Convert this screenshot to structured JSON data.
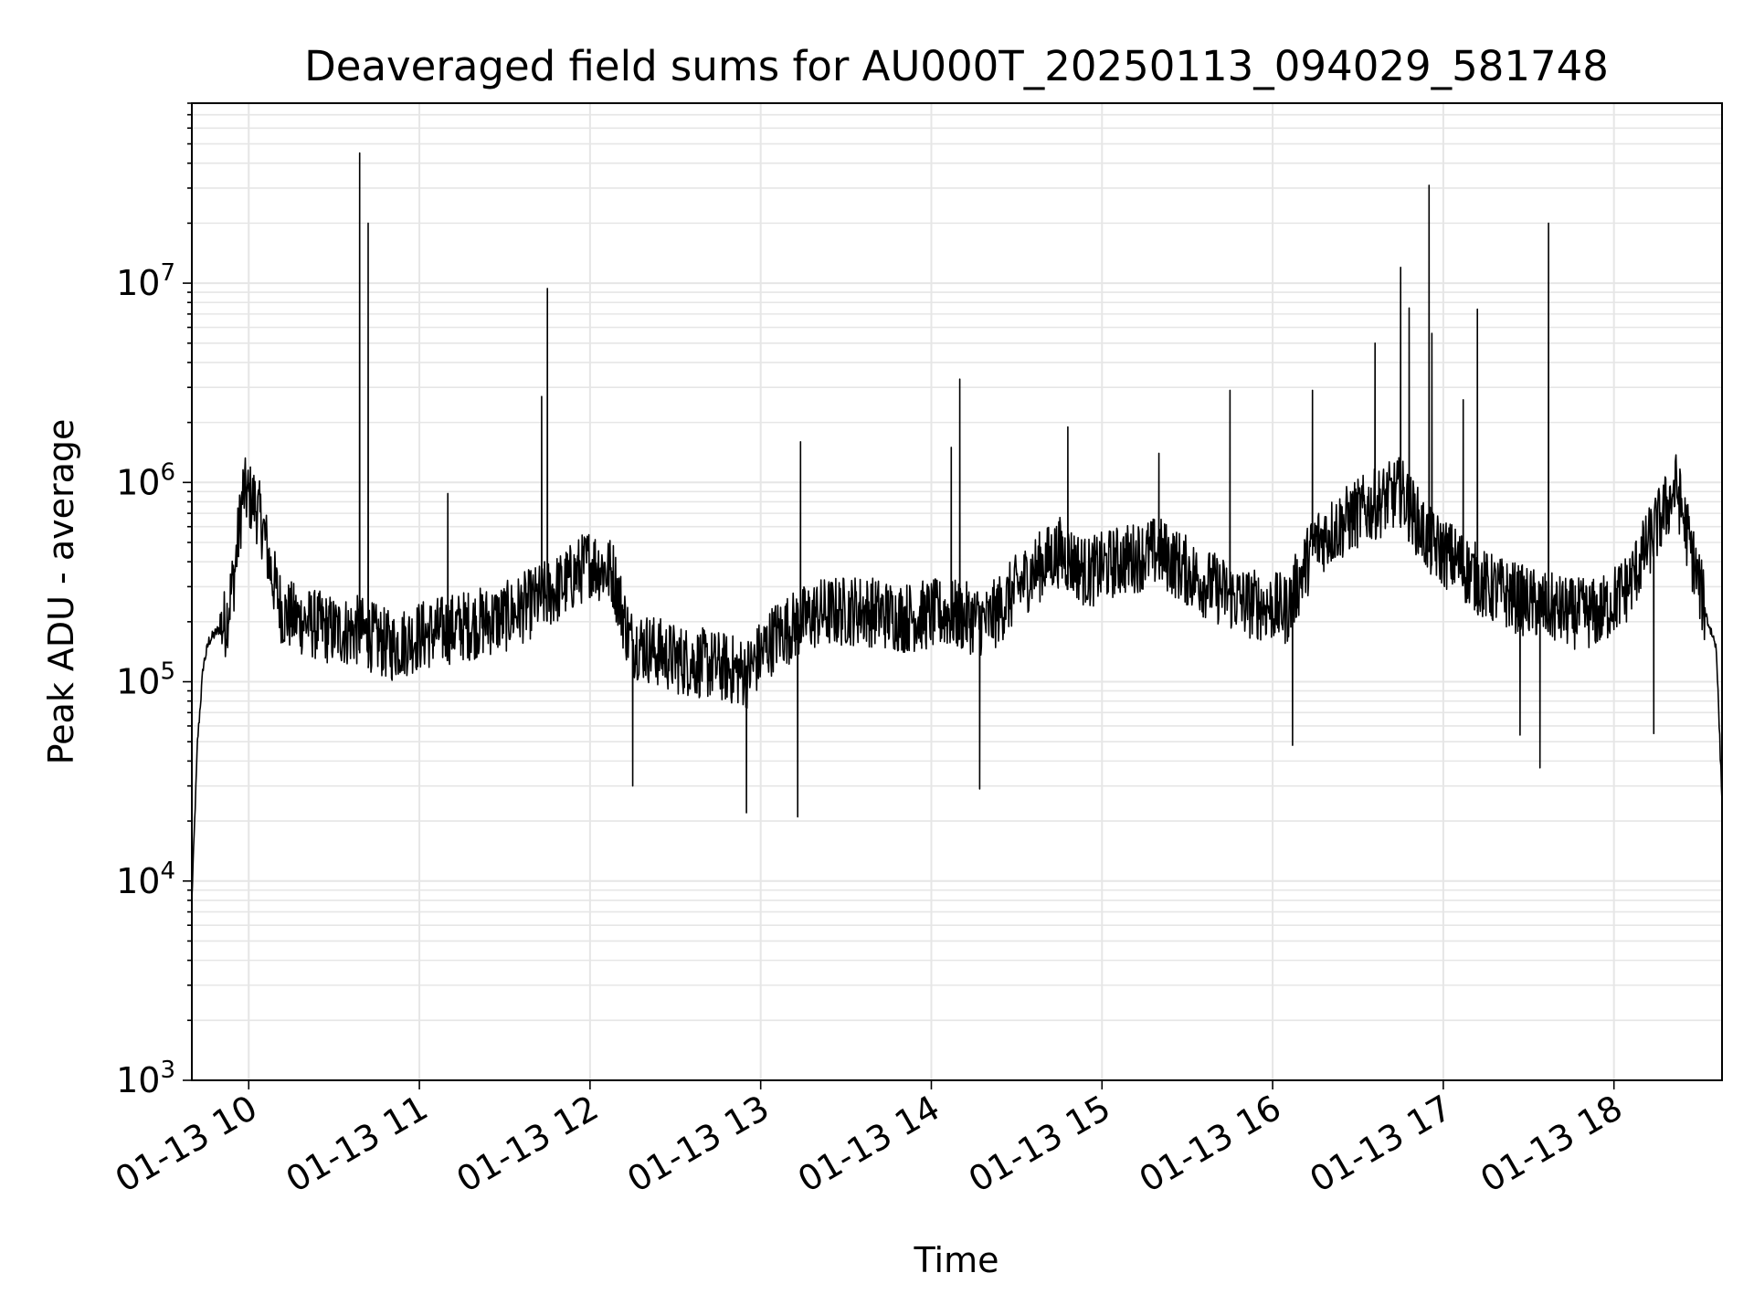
{
  "chart_data": {
    "type": "line",
    "title": "Deaveraged field sums for AU000T_20250113_094029_581748",
    "xlabel": "Time",
    "ylabel": "Peak ADU - average",
    "x_scale": "time",
    "y_scale": "log",
    "ylim": [
      1000,
      80000000
    ],
    "xlim": [
      "2025-01-13 09:40",
      "2025-01-13 18:38"
    ],
    "grid": true,
    "colors": {
      "line": "#000000",
      "grid": "#e6e6e6",
      "axes": "#000000",
      "background": "#ffffff"
    },
    "x_ticks": [
      {
        "time": "2025-01-13 10:00",
        "label": "01-13 10"
      },
      {
        "time": "2025-01-13 11:00",
        "label": "01-13 11"
      },
      {
        "time": "2025-01-13 12:00",
        "label": "01-13 12"
      },
      {
        "time": "2025-01-13 13:00",
        "label": "01-13 13"
      },
      {
        "time": "2025-01-13 14:00",
        "label": "01-13 14"
      },
      {
        "time": "2025-01-13 15:00",
        "label": "01-13 15"
      },
      {
        "time": "2025-01-13 16:00",
        "label": "01-13 16"
      },
      {
        "time": "2025-01-13 17:00",
        "label": "01-13 17"
      },
      {
        "time": "2025-01-13 18:00",
        "label": "01-13 18"
      }
    ],
    "y_ticks": [
      {
        "value": 1000,
        "base": "10",
        "exp": "3"
      },
      {
        "value": 10000,
        "base": "10",
        "exp": "4"
      },
      {
        "value": 100000,
        "base": "10",
        "exp": "5"
      },
      {
        "value": 1000000,
        "base": "10",
        "exp": "6"
      },
      {
        "value": 10000000,
        "base": "10",
        "exp": "7"
      }
    ],
    "series": [
      {
        "color": "#000000",
        "points": [
          [
            "2025-01-13 09:40",
            8000
          ],
          [
            "2025-01-13 09:42",
            50000
          ],
          [
            "2025-01-13 09:44",
            120000
          ],
          [
            "2025-01-13 09:46",
            160000
          ],
          [
            "2025-01-13 09:49",
            180000
          ],
          [
            "2025-01-13 09:52",
            200000
          ],
          [
            "2025-01-13 09:55",
            350000
          ],
          [
            "2025-01-13 09:58",
            900000
          ],
          [
            "2025-01-13 10:02",
            800000
          ],
          [
            "2025-01-13 10:05",
            600000
          ],
          [
            "2025-01-13 10:08",
            350000
          ],
          [
            "2025-01-13 10:12",
            220000
          ],
          [
            "2025-01-13 10:20",
            200000
          ],
          [
            "2025-01-13 10:30",
            180000
          ],
          [
            "2025-01-13 10:39",
            180000
          ],
          [
            "2025-01-13 10:50",
            150000
          ],
          [
            "2025-01-13 11:00",
            170000
          ],
          [
            "2025-01-13 11:15",
            190000
          ],
          [
            "2025-01-13 11:30",
            210000
          ],
          [
            "2025-01-13 11:40",
            250000
          ],
          [
            "2025-01-13 11:50",
            300000
          ],
          [
            "2025-01-13 12:00",
            400000
          ],
          [
            "2025-01-13 12:08",
            350000
          ],
          [
            "2025-01-13 12:14",
            160000
          ],
          [
            "2025-01-13 12:30",
            130000
          ],
          [
            "2025-01-13 12:45",
            120000
          ],
          [
            "2025-01-13 12:55",
            110000
          ],
          [
            "2025-01-13 13:05",
            170000
          ],
          [
            "2025-01-13 13:20",
            220000
          ],
          [
            "2025-01-13 13:35",
            230000
          ],
          [
            "2025-01-13 13:50",
            210000
          ],
          [
            "2025-01-13 14:05",
            220000
          ],
          [
            "2025-01-13 14:20",
            200000
          ],
          [
            "2025-01-13 14:35",
            350000
          ],
          [
            "2025-01-13 14:45",
            450000
          ],
          [
            "2025-01-13 14:55",
            350000
          ],
          [
            "2025-01-13 15:05",
            400000
          ],
          [
            "2025-01-13 15:20",
            450000
          ],
          [
            "2025-01-13 15:35",
            320000
          ],
          [
            "2025-01-13 15:50",
            250000
          ],
          [
            "2025-01-13 16:05",
            230000
          ],
          [
            "2025-01-13 16:15",
            500000
          ],
          [
            "2025-01-13 16:30",
            700000
          ],
          [
            "2025-01-13 16:45",
            900000
          ],
          [
            "2025-01-13 16:55",
            500000
          ],
          [
            "2025-01-13 17:05",
            400000
          ],
          [
            "2025-01-13 17:15",
            300000
          ],
          [
            "2025-01-13 17:30",
            250000
          ],
          [
            "2025-01-13 17:45",
            220000
          ],
          [
            "2025-01-13 17:55",
            220000
          ],
          [
            "2025-01-13 18:05",
            300000
          ],
          [
            "2025-01-13 18:15",
            600000
          ],
          [
            "2025-01-13 18:22",
            950000
          ],
          [
            "2025-01-13 18:28",
            400000
          ],
          [
            "2025-01-13 18:33",
            200000
          ],
          [
            "2025-01-13 18:36",
            150000
          ],
          [
            "2025-01-13 18:38",
            25000
          ]
        ],
        "spikes": [
          [
            "2025-01-13 10:39",
            45000000
          ],
          [
            "2025-01-13 10:42",
            20000000
          ],
          [
            "2025-01-13 11:10",
            880000
          ],
          [
            "2025-01-13 11:43",
            2700000
          ],
          [
            "2025-01-13 11:45",
            9400000
          ],
          [
            "2025-01-13 12:15",
            30000
          ],
          [
            "2025-01-13 12:55",
            22000
          ],
          [
            "2025-01-13 13:13",
            21000
          ],
          [
            "2025-01-13 13:14",
            1600000
          ],
          [
            "2025-01-13 14:07",
            1500000
          ],
          [
            "2025-01-13 14:10",
            3300000
          ],
          [
            "2025-01-13 14:17",
            29000
          ],
          [
            "2025-01-13 14:48",
            1900000
          ],
          [
            "2025-01-13 15:20",
            1400000
          ],
          [
            "2025-01-13 15:45",
            2900000
          ],
          [
            "2025-01-13 16:07",
            48000
          ],
          [
            "2025-01-13 16:14",
            2900000
          ],
          [
            "2025-01-13 16:36",
            5000000
          ],
          [
            "2025-01-13 16:45",
            12000000
          ],
          [
            "2025-01-13 16:48",
            7500000
          ],
          [
            "2025-01-13 16:55",
            31000000
          ],
          [
            "2025-01-13 16:56",
            5600000
          ],
          [
            "2025-01-13 17:07",
            2600000
          ],
          [
            "2025-01-13 17:12",
            7400000
          ],
          [
            "2025-01-13 17:27",
            54000
          ],
          [
            "2025-01-13 17:34",
            37000
          ],
          [
            "2025-01-13 17:37",
            20000000
          ],
          [
            "2025-01-13 18:14",
            55000
          ]
        ]
      }
    ]
  }
}
